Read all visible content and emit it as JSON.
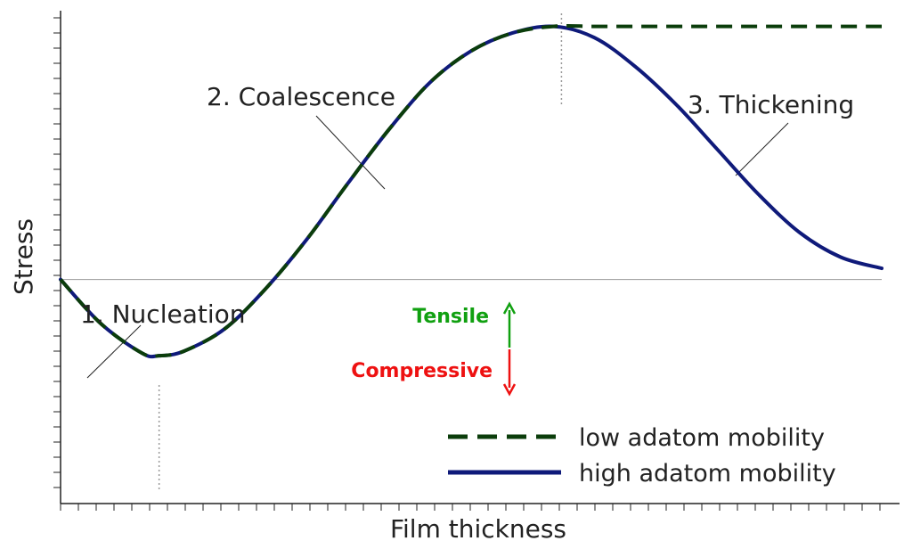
{
  "chart_data": {
    "type": "line",
    "title": "",
    "xlabel": "Film thickness",
    "ylabel": "Stress",
    "grid": false,
    "xlim": [
      0,
      10
    ],
    "ylim": [
      -1.0,
      1.2
    ],
    "legend_position": "bottom-right",
    "series": [
      {
        "name": "low adatom mobility",
        "style": "dashed",
        "color": "#0b3d0b",
        "x": [
          0,
          0.5,
          1.0,
          1.2,
          1.5,
          2.0,
          2.5,
          3.0,
          3.5,
          4.0,
          4.5,
          5.0,
          5.5,
          6.0,
          6.5,
          7.0,
          7.5,
          8.0,
          8.5,
          9.0,
          9.5,
          10.0
        ],
        "y": [
          0,
          -0.2,
          -0.33,
          -0.34,
          -0.32,
          -0.22,
          -0.04,
          0.18,
          0.43,
          0.67,
          0.88,
          1.02,
          1.1,
          1.13,
          1.13,
          1.13,
          1.13,
          1.13,
          1.13,
          1.13,
          1.13,
          1.13
        ]
      },
      {
        "name": "high adatom mobility",
        "style": "solid",
        "color": "#0f1a7a",
        "x": [
          0,
          0.5,
          1.0,
          1.2,
          1.5,
          2.0,
          2.5,
          3.0,
          3.5,
          4.0,
          4.5,
          5.0,
          5.5,
          6.0,
          6.5,
          7.0,
          7.5,
          8.0,
          8.5,
          9.0,
          9.5,
          10.0
        ],
        "y": [
          0,
          -0.2,
          -0.33,
          -0.34,
          -0.32,
          -0.22,
          -0.04,
          0.18,
          0.43,
          0.67,
          0.88,
          1.02,
          1.1,
          1.13,
          1.08,
          0.95,
          0.78,
          0.58,
          0.38,
          0.21,
          0.1,
          0.05
        ]
      }
    ],
    "annotations": [
      {
        "text": "1. Nucleation",
        "x": 0.35,
        "y": -0.1
      },
      {
        "text": "2. Coalescence",
        "x": 4.0,
        "y": 0.59
      },
      {
        "text": "3. Thickening",
        "x": 8.3,
        "y": 0.68
      }
    ],
    "stress_direction": {
      "tensile_label": "Tensile",
      "tensile_color": "#10a010",
      "compressive_label": "Compressive",
      "compressive_color": "#ee1111"
    },
    "reference_lines": {
      "zero_line_y": 0,
      "vertical_markers_x": [
        1.2,
        6.1
      ]
    }
  }
}
